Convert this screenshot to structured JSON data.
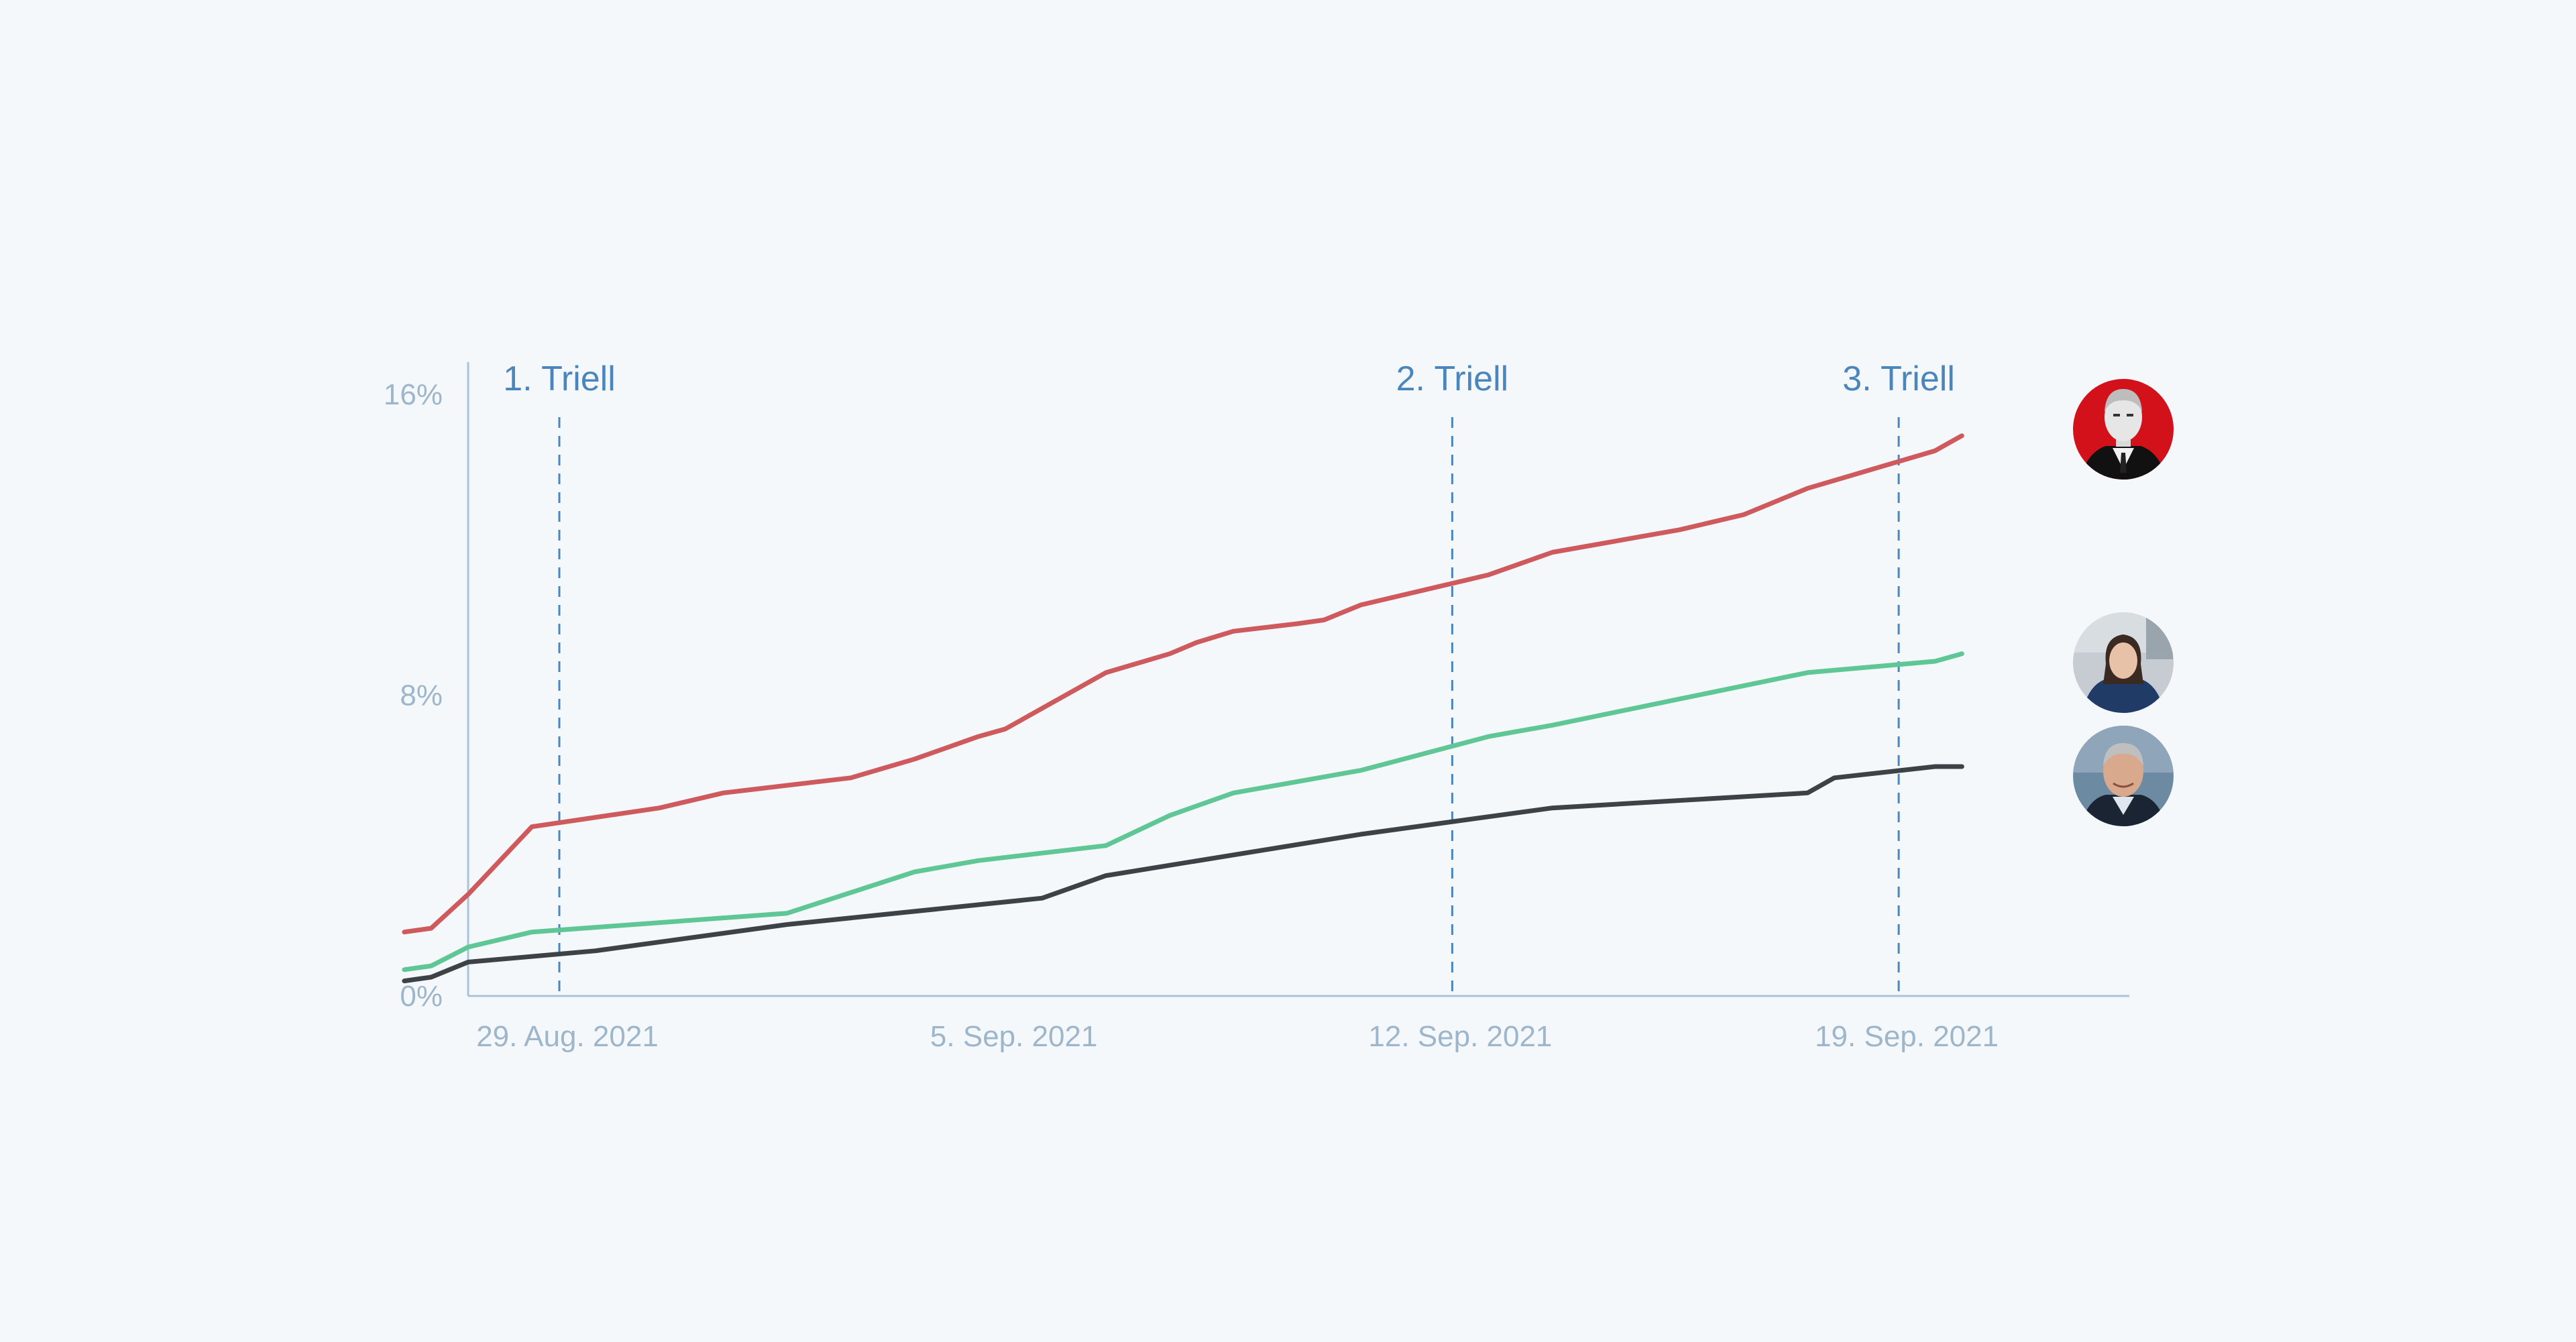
{
  "chart_data": {
    "type": "line",
    "title": "",
    "xlabel": "",
    "ylabel": "",
    "ylim": [
      0,
      16
    ],
    "xlim": [
      "2021-08-29",
      "2021-09-26"
    ],
    "y_ticks": [
      {
        "value": 0,
        "label": "0%"
      },
      {
        "value": 8,
        "label": "8%"
      },
      {
        "value": 16,
        "label": "16%"
      }
    ],
    "x_ticks": [
      {
        "date": "2021-08-29",
        "label": "29. Aug. 2021"
      },
      {
        "date": "2021-09-05",
        "label": "5. Sep. 2021"
      },
      {
        "date": "2021-09-12",
        "label": "12. Sep. 2021"
      },
      {
        "date": "2021-09-19",
        "label": "19. Sep. 2021"
      }
    ],
    "events": [
      {
        "date": "2021-08-29",
        "label": "1. Triell"
      },
      {
        "date": "2021-09-12",
        "label": "2. Triell"
      },
      {
        "date": "2021-09-19",
        "label": "3. Triell"
      }
    ],
    "grid": false,
    "legend": "none; series identified by portrait markers at line ends",
    "series": [
      {
        "color": "#cf5a5e",
        "marker": "portrait-red-background",
        "x": [
          "2021-08-28",
          "2021-08-28",
          "2021-08-29",
          "2021-08-30",
          "2021-09-01",
          "2021-09-02",
          "2021-09-04",
          "2021-09-05",
          "2021-09-06",
          "2021-09-06",
          "2021-09-08",
          "2021-09-09",
          "2021-09-09",
          "2021-09-10",
          "2021-09-11",
          "2021-09-11",
          "2021-09-12",
          "2021-09-14",
          "2021-09-15",
          "2021-09-17",
          "2021-09-18",
          "2021-09-19",
          "2021-09-20",
          "2021-09-21",
          "2021-09-21"
        ],
        "y": [
          1.7,
          1.8,
          2.7,
          4.5,
          5.0,
          5.4,
          5.8,
          6.3,
          6.9,
          7.1,
          8.6,
          9.1,
          9.4,
          9.7,
          9.9,
          10.0,
          10.4,
          11.2,
          11.8,
          12.4,
          12.8,
          13.5,
          14.0,
          14.5,
          14.9
        ]
      },
      {
        "color": "#5ec795",
        "marker": "portrait-woman",
        "x": [
          "2021-08-28",
          "2021-08-28",
          "2021-08-29",
          "2021-08-30",
          "2021-09-03",
          "2021-09-05",
          "2021-09-06",
          "2021-09-08",
          "2021-09-09",
          "2021-09-10",
          "2021-09-12",
          "2021-09-14",
          "2021-09-15",
          "2021-09-17",
          "2021-09-19",
          "2021-09-21",
          "2021-09-21"
        ],
        "y": [
          0.7,
          0.8,
          1.3,
          1.7,
          2.2,
          3.3,
          3.6,
          4.0,
          4.8,
          5.4,
          6.0,
          6.9,
          7.2,
          7.9,
          8.6,
          8.9,
          9.1
        ]
      },
      {
        "color": "#3d4247",
        "marker": "portrait-man",
        "x": [
          "2021-08-28",
          "2021-08-28",
          "2021-08-29",
          "2021-08-31",
          "2021-09-03",
          "2021-09-07",
          "2021-09-08",
          "2021-09-12",
          "2021-09-15",
          "2021-09-18",
          "2021-09-19",
          "2021-09-19",
          "2021-09-21",
          "2021-09-21"
        ],
        "y": [
          0.4,
          0.5,
          0.9,
          1.2,
          1.9,
          2.6,
          3.2,
          4.3,
          5.0,
          5.3,
          5.4,
          5.8,
          6.1,
          6.1
        ]
      }
    ]
  }
}
